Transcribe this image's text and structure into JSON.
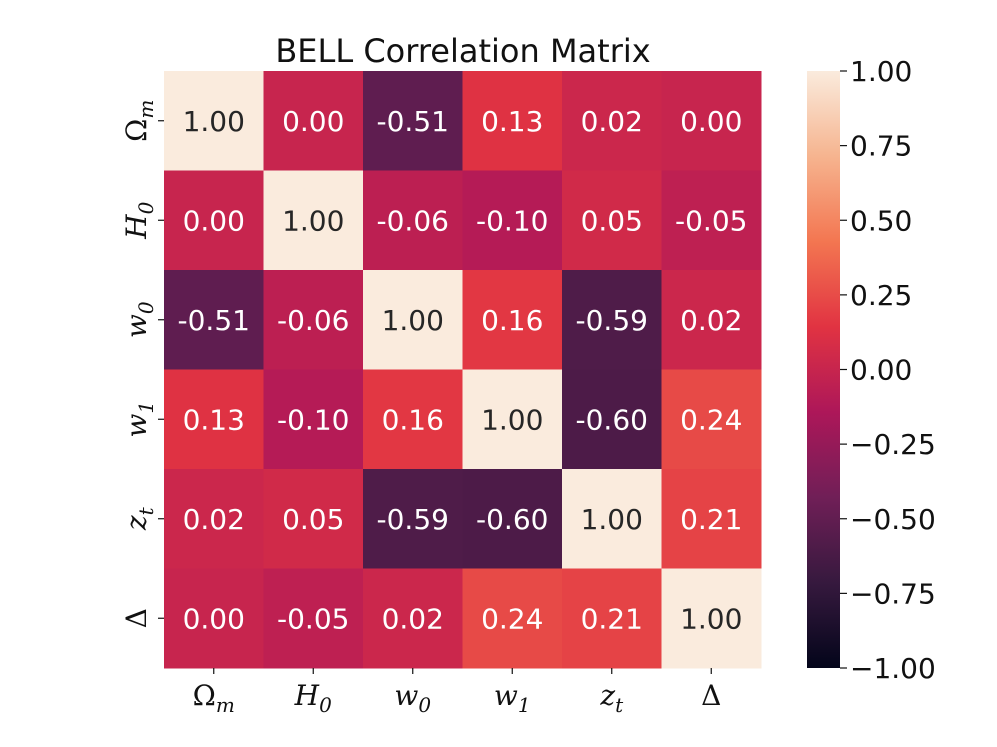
{
  "chart_data": {
    "type": "heatmap",
    "title": "BELL Correlation Matrix",
    "x_labels": [
      {
        "base": "Ω",
        "sub": "m"
      },
      {
        "base": "H",
        "sub": "0"
      },
      {
        "base": "w",
        "sub": "0"
      },
      {
        "base": "w",
        "sub": "1"
      },
      {
        "base": "z",
        "sub": "t"
      },
      {
        "base": "Δ",
        "sub": ""
      }
    ],
    "y_labels": [
      {
        "base": "Ω",
        "sub": "m"
      },
      {
        "base": "H",
        "sub": "0"
      },
      {
        "base": "w",
        "sub": "0"
      },
      {
        "base": "w",
        "sub": "1"
      },
      {
        "base": "z",
        "sub": "t"
      },
      {
        "base": "Δ",
        "sub": ""
      }
    ],
    "values": [
      [
        1.0,
        0.0,
        -0.51,
        0.13,
        0.02,
        0.0
      ],
      [
        0.0,
        1.0,
        -0.06,
        -0.1,
        0.05,
        -0.05
      ],
      [
        -0.51,
        -0.06,
        1.0,
        0.16,
        -0.59,
        0.02
      ],
      [
        0.13,
        -0.1,
        0.16,
        1.0,
        -0.6,
        0.24
      ],
      [
        0.02,
        0.05,
        -0.59,
        -0.6,
        1.0,
        0.21
      ],
      [
        0.0,
        -0.05,
        0.02,
        0.24,
        0.21,
        1.0
      ]
    ],
    "value_format": "2 decimals",
    "colorbar": {
      "range": [
        -1.0,
        1.0
      ],
      "ticks": [
        "1.00",
        "0.75",
        "0.50",
        "0.25",
        "0.00",
        "−0.25",
        "−0.50",
        "−0.75",
        "−1.00"
      ],
      "colormap": "rocket",
      "colormap_stops": [
        "#03051a",
        "#36193e",
        "#701f57",
        "#ad1759",
        "#e13342",
        "#f37651",
        "#f6b48f",
        "#faebdd"
      ]
    }
  }
}
